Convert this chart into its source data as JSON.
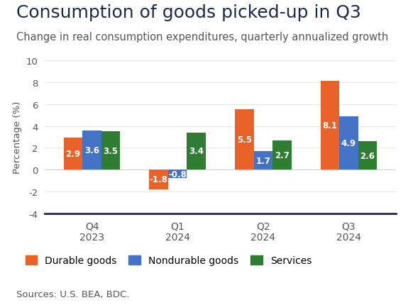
{
  "title": "Consumption of goods picked-up in Q3",
  "subtitle": "Change in real consumption expenditures, quarterly annualized growth",
  "source": "Sources: U.S. BEA, BDC.",
  "categories": [
    "Q4\n2023",
    "Q1\n2024",
    "Q2\n2024",
    "Q3\n2024"
  ],
  "series": {
    "Durable goods": [
      2.9,
      -1.8,
      5.5,
      8.1
    ],
    "Nondurable goods": [
      3.6,
      -0.8,
      1.7,
      4.9
    ],
    "Services": [
      3.5,
      3.4,
      2.7,
      2.6
    ]
  },
  "colors": {
    "Durable goods": "#E8622A",
    "Nondurable goods": "#4472C4",
    "Services": "#2E7D32"
  },
  "ylabel": "Percentage (%)",
  "ylim": [
    -4,
    10
  ],
  "yticks": [
    -4,
    -2,
    0,
    2,
    4,
    6,
    8,
    10
  ],
  "background_color": "#FFFFFF",
  "title_fontsize": 18,
  "subtitle_fontsize": 10.5,
  "bar_width": 0.22,
  "label_fontsize": 8.5,
  "legend_fontsize": 10,
  "source_fontsize": 9.5,
  "title_color": "#1B2A4A",
  "subtitle_color": "#555555",
  "axis_color": "#1B2A4A",
  "tick_color": "#555555"
}
